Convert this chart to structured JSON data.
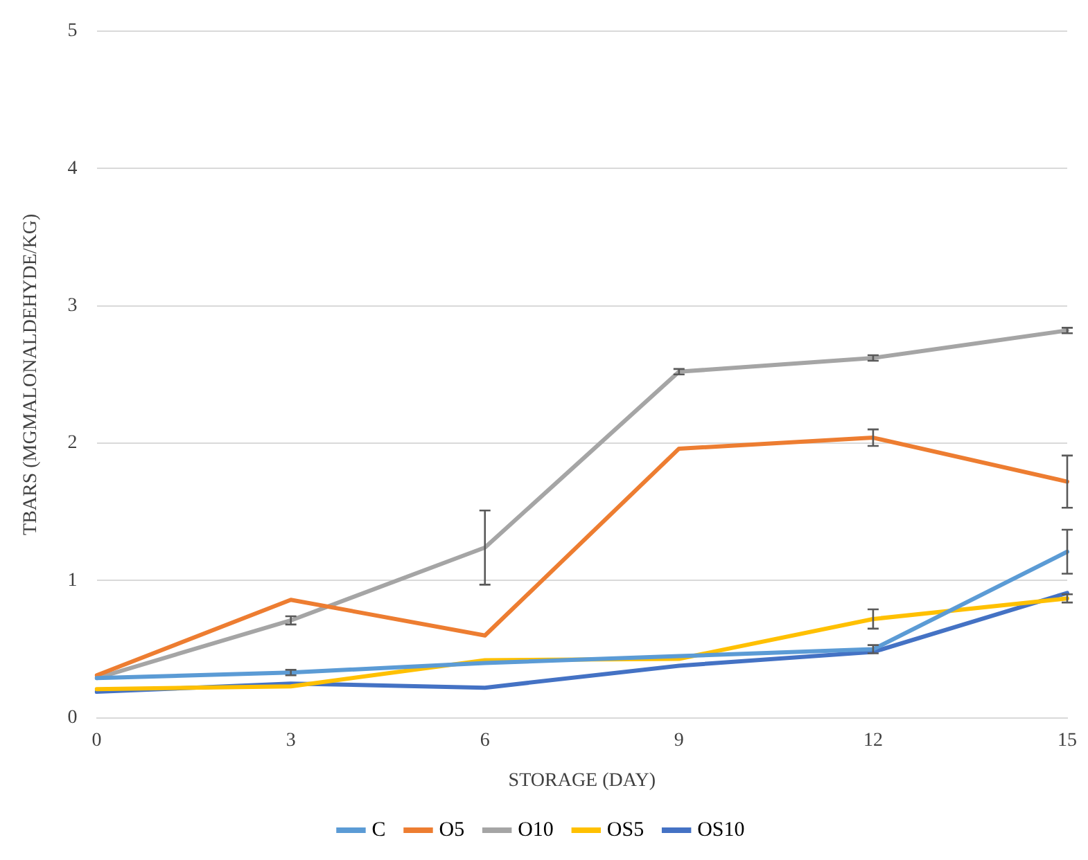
{
  "chart_data": {
    "type": "line",
    "xlabel": "STORAGE (DAY)",
    "ylabel": "TBARS (MGMALONALDEHYDE/KG)",
    "categories": [
      "0",
      "3",
      "6",
      "9",
      "12",
      "15"
    ],
    "series": [
      {
        "name": "C",
        "color": "#5b9bd5",
        "values": [
          0.29,
          0.33,
          0.4,
          0.45,
          0.5,
          1.21
        ],
        "errors": [
          null,
          0.02,
          null,
          null,
          0.03,
          0.16
        ]
      },
      {
        "name": "O5",
        "color": "#ed7d31",
        "values": [
          0.31,
          0.86,
          0.6,
          1.96,
          2.04,
          1.72
        ],
        "errors": [
          null,
          null,
          null,
          null,
          0.06,
          0.19
        ]
      },
      {
        "name": "O10",
        "color": "#a5a5a5",
        "values": [
          0.29,
          0.71,
          1.24,
          2.52,
          2.62,
          2.82
        ],
        "errors": [
          null,
          0.03,
          0.27,
          0.02,
          0.02,
          0.02
        ]
      },
      {
        "name": "OS5",
        "color": "#ffc000",
        "values": [
          0.21,
          0.23,
          0.42,
          0.43,
          0.72,
          0.87
        ],
        "errors": [
          null,
          null,
          null,
          null,
          0.07,
          0.03
        ]
      },
      {
        "name": "OS10",
        "color": "#4472c4",
        "values": [
          0.19,
          0.25,
          0.22,
          0.38,
          0.48,
          0.91
        ]
      }
    ],
    "ylim": [
      0,
      5
    ],
    "yticks": [
      0,
      1,
      2,
      3,
      4,
      5
    ],
    "grid": "y",
    "legend": "bottom",
    "marker": "none",
    "line_style": "solid"
  }
}
